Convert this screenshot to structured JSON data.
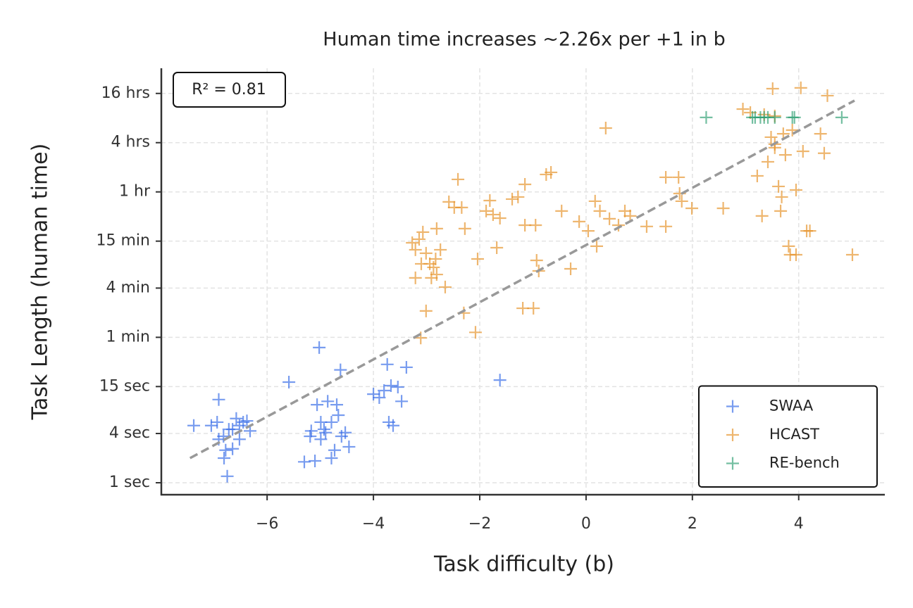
{
  "chart_data": {
    "type": "scatter",
    "title": "Human time increases ~2.26x per +1 in b",
    "x_label": "Task difficulty (b)",
    "y_label": "Task Length (human time)",
    "annotation": "R² = 0.81",
    "log_y": true,
    "grid": true,
    "legend_position": "lower right",
    "xlim": [
      -7.99,
      5.62
    ],
    "ylim": [
      0.714,
      117000
    ],
    "xticks": [
      {
        "value": -6,
        "label": "−6"
      },
      {
        "value": -4,
        "label": "−4"
      },
      {
        "value": -2,
        "label": "−2"
      },
      0,
      2,
      4
    ],
    "yticks": [
      {
        "value": 1,
        "label": "1 sec"
      },
      {
        "value": 4,
        "label": "4 sec"
      },
      {
        "value": 15,
        "label": "15 sec"
      },
      {
        "value": 60,
        "label": "1 min"
      },
      {
        "value": 240,
        "label": "4 min"
      },
      {
        "value": 900,
        "label": "15 min"
      },
      {
        "value": 3600,
        "label": "1 hr"
      },
      {
        "value": 14400,
        "label": "4 hrs"
      },
      {
        "value": 57600,
        "label": "16 hrs"
      }
    ],
    "fit_line": {
      "x": [
        -7.45,
        5.05
      ],
      "values": [
        2.0,
        47100
      ],
      "color": "#999999"
    },
    "series": [
      {
        "name": "SWAA",
        "color": "#2f67e6",
        "x": [
          -7.38,
          -6.91,
          -6.94,
          -6.82,
          -6.78,
          -6.75,
          -6.65,
          -6.58,
          -6.52,
          -6.45,
          -6.65,
          -7.05,
          -6.91,
          -6.38,
          -6.32,
          -6.72,
          -6.52,
          -6.81,
          -5.59,
          -5.02,
          -5.06,
          -4.99,
          -5.3,
          -5.19,
          -5.1,
          -4.93,
          -4.86,
          -4.79,
          -4.73,
          -4.66,
          -4.62,
          -4.6,
          -4.53,
          -4.46,
          -4.79,
          -4.99,
          -4.9,
          -4.69,
          -5.17,
          -4.0,
          -3.89,
          -3.8,
          -3.74,
          -3.67,
          -3.71,
          -3.63,
          -3.54,
          -3.47,
          -3.38,
          -1.62
        ],
        "values": [
          5.0,
          10.4,
          5.5,
          3.7,
          2.5,
          1.2,
          4.5,
          6.1,
          5.0,
          5.5,
          2.6,
          5.0,
          3.4,
          5.7,
          4.3,
          4.5,
          3.4,
          2.0,
          17,
          45,
          9.0,
          5.5,
          1.8,
          3.7,
          1.85,
          4.5,
          9.9,
          2.0,
          2.5,
          6.7,
          24,
          3.7,
          4.1,
          2.75,
          5.5,
          3.4,
          4.1,
          9.0,
          4.3,
          12.1,
          11.0,
          13.4,
          28,
          15.4,
          5.5,
          5.0,
          14.8,
          9.9,
          25.8,
          18
        ]
      },
      {
        "name": "HCAST",
        "color": "#e58f22",
        "x": [
          -3.27,
          -3.21,
          -3.14,
          -3.07,
          -3.01,
          -2.94,
          -2.87,
          -2.81,
          -2.74,
          -3.21,
          -3.1,
          -2.91,
          -2.81,
          -2.65,
          -3.01,
          -3.11,
          -2.83,
          -2.41,
          -2.48,
          -2.58,
          -2.34,
          -2.28,
          -2.3,
          -2.08,
          -2.04,
          -1.88,
          -1.81,
          -1.75,
          -1.68,
          -1.62,
          -1.39,
          -1.28,
          -1.15,
          -1.15,
          -1.19,
          -0.99,
          -0.95,
          -0.93,
          -0.89,
          -0.75,
          -0.66,
          -0.46,
          -0.29,
          -0.13,
          0.04,
          0.17,
          0.26,
          0.2,
          0.37,
          0.44,
          0.61,
          0.73,
          0.83,
          1.14,
          1.5,
          1.5,
          1.74,
          1.76,
          1.8,
          1.99,
          2.58,
          2.95,
          3.09,
          3.22,
          3.31,
          3.35,
          3.42,
          3.48,
          3.51,
          3.55,
          3.55,
          3.62,
          3.68,
          3.75,
          3.81,
          3.84,
          3.88,
          3.95,
          3.95,
          4.04,
          4.08,
          4.15,
          4.21,
          4.41,
          4.48,
          4.54,
          5.01,
          3.55,
          3.71,
          3.66
        ],
        "values": [
          860,
          706,
          950,
          1160,
          640,
          475,
          430,
          1280,
          706,
          320,
          475,
          320,
          352,
          247,
          126,
          59,
          545,
          5120,
          2320,
          2720,
          2320,
          1280,
          119,
          69,
          545,
          2100,
          2820,
          1900,
          748,
          1720,
          2940,
          3120,
          4450,
          1410,
          136,
          136,
          1410,
          524,
          389,
          5880,
          6240,
          2100,
          413,
          1560,
          1200,
          2770,
          2100,
          780,
          21700,
          1690,
          1410,
          2100,
          1830,
          1360,
          1360,
          5430,
          5430,
          3440,
          2770,
          2270,
          2270,
          37100,
          33600,
          5650,
          1830,
          31700,
          8400,
          16800,
          65900,
          30500,
          13800,
          4200,
          3120,
          10200,
          780,
          614,
          20500,
          3800,
          614,
          67300,
          11300,
          1200,
          1200,
          18500,
          10700,
          54100,
          614,
          12500,
          18500,
          2100
        ]
      },
      {
        "name": "RE-bench",
        "color": "#2a9d6f",
        "x": [
          2.26,
          3.13,
          3.18,
          3.28,
          3.35,
          3.42,
          3.55,
          3.88,
          3.92,
          4.81
        ],
        "values": [
          29300,
          29300,
          29300,
          29300,
          29300,
          29300,
          29300,
          29300,
          29300,
          29300
        ]
      }
    ]
  }
}
